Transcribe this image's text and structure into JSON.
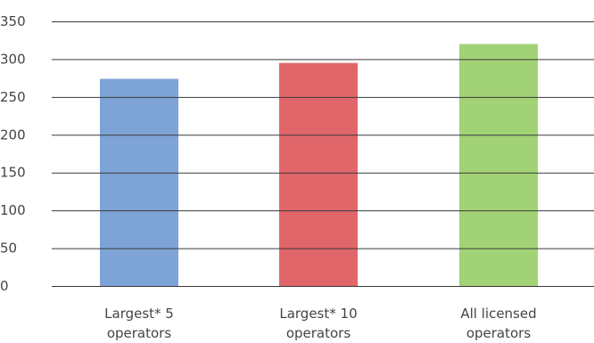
{
  "chart_data": {
    "type": "bar",
    "categories": [
      [
        "Largest* 5",
        "operators"
      ],
      [
        "Largest* 10",
        "operators"
      ],
      [
        "All licensed",
        "operators"
      ]
    ],
    "values": [
      274,
      295,
      320
    ],
    "colors": [
      "#7ea3d6",
      "#e0666a",
      "#a2d276"
    ],
    "y_ticks": [
      "0",
      "50",
      "100",
      "150",
      "200",
      "250",
      "300",
      "350"
    ],
    "ylim": [
      0,
      350
    ],
    "grid": true
  }
}
